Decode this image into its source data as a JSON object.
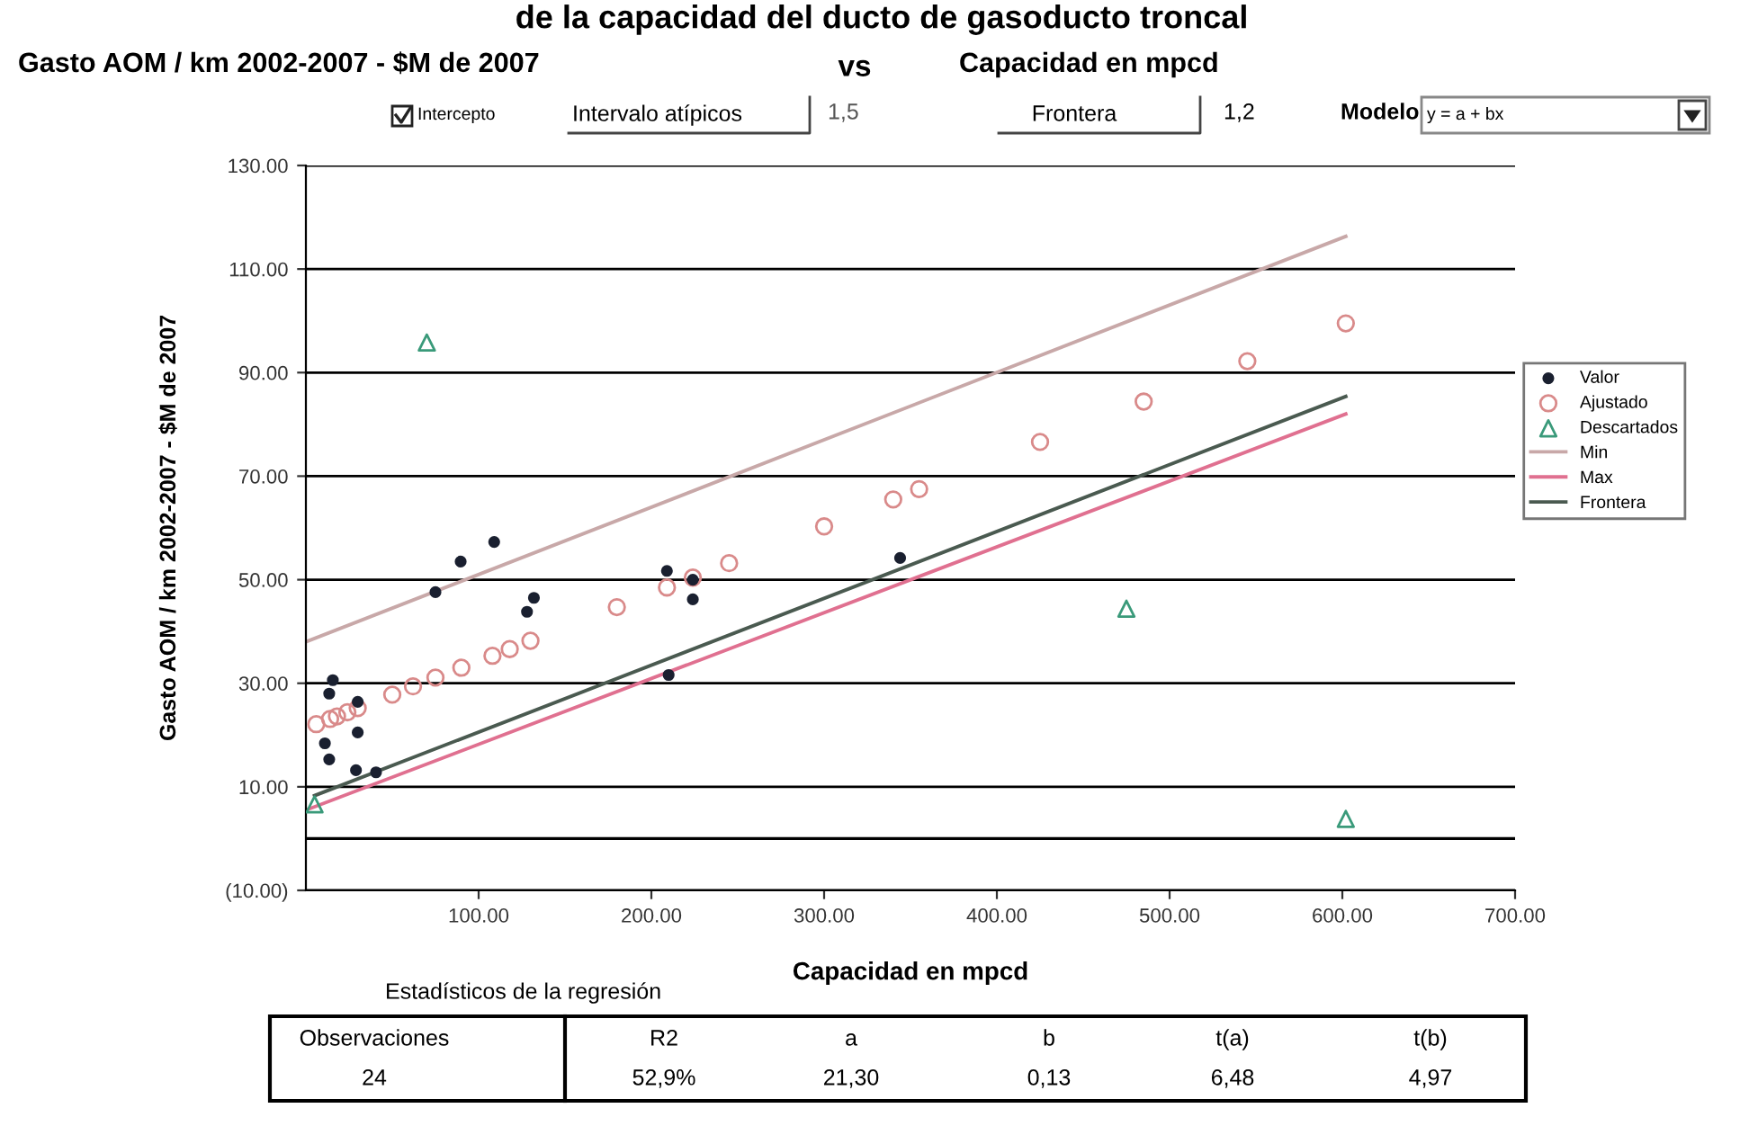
{
  "chart_data": {
    "type": "scatter",
    "title": "de la capacidad del ducto de gasoducto troncal",
    "xlabel": "Capacidad en mpcd",
    "ylabel": "Gasto AOM / km 2002-2007 - $M de 2007",
    "xlim": [
      0,
      700
    ],
    "xticks": [
      {
        "value": 100,
        "label": "100.00"
      },
      {
        "value": 200,
        "label": "200.00"
      },
      {
        "value": 300,
        "label": "300.00"
      },
      {
        "value": 400,
        "label": "400.00"
      },
      {
        "value": 500,
        "label": "500.00"
      },
      {
        "value": 600,
        "label": "600.00"
      },
      {
        "value": 700,
        "label": "700.00"
      }
    ],
    "ylim": [
      -10,
      130
    ],
    "yticks": [
      {
        "value": -10,
        "label": "(10.00)"
      },
      {
        "value": 10,
        "label": "10.00"
      },
      {
        "value": 30,
        "label": "30.00"
      },
      {
        "value": 50,
        "label": "50.00"
      },
      {
        "value": 70,
        "label": "70.00"
      },
      {
        "value": 90,
        "label": "90.00"
      },
      {
        "value": 110,
        "label": "110.00"
      },
      {
        "value": 130,
        "label": "130.00"
      }
    ],
    "grid": "y",
    "legend": "right",
    "ref_lines": [
      {
        "axis": "y",
        "value": 0,
        "color": "#000000"
      }
    ],
    "series": [
      {
        "name": "Valor",
        "marker": "circle",
        "color": "#1a2030",
        "x": [
          11,
          13.5,
          13.5,
          15.6,
          29,
          30,
          30,
          40.6,
          75,
          89.6,
          109,
          128,
          132,
          209,
          210,
          224,
          224,
          344
        ],
        "values": [
          18.4,
          15.3,
          28,
          30.6,
          13.2,
          20.5,
          26.4,
          12.8,
          47.6,
          53.5,
          57.3,
          43.8,
          46.5,
          51.7,
          31.6,
          46.2,
          50,
          54.2
        ]
      },
      {
        "name": "Ajustado",
        "marker": "circle",
        "color": "#d98a8a",
        "x": [
          6,
          14,
          18,
          24,
          30,
          50,
          62,
          75,
          90,
          108,
          118,
          130,
          180,
          209,
          224,
          245,
          300,
          340,
          355,
          425,
          485,
          545,
          602
        ],
        "values": [
          22.1,
          23.1,
          23.6,
          24.4,
          25.2,
          27.8,
          29.4,
          31.1,
          33,
          35.3,
          36.6,
          38.2,
          44.7,
          48.5,
          50.4,
          53.2,
          60.3,
          65.5,
          67.5,
          76.6,
          84.4,
          92.2,
          99.5
        ]
      },
      {
        "name": "Descartados",
        "marker": "triangle",
        "color": "#3a9a7a",
        "x": [
          5,
          70,
          475,
          602
        ],
        "values": [
          6.6,
          95.8,
          44.4,
          3.8
        ]
      },
      {
        "name": "Min",
        "type": "line",
        "color": "#c8a8a8",
        "x": [
          0,
          602
        ],
        "values": [
          38,
          116.3
        ]
      },
      {
        "name": "Max",
        "type": "line",
        "color": "#e07090",
        "x": [
          0,
          602
        ],
        "values": [
          5.5,
          82
        ]
      },
      {
        "name": "Frontera",
        "type": "line",
        "color": "#4a5a50",
        "x": [
          5,
          602
        ],
        "values": [
          8.3,
          85.4
        ]
      }
    ],
    "annotations": [
      "Gasto AOM / km 2002-2007 - $M de 2007",
      "vs",
      "Capacidad en mpcd",
      "Intercepto",
      "Intervalo atípicos",
      "1,5",
      "Frontera",
      "1,2",
      "Modelo",
      "y = a + bx",
      "Estadísticos de la regresión",
      "Observaciones",
      "R2",
      "a",
      "b",
      "t(a)",
      "t(b)",
      "24",
      "52,9%",
      "21,30",
      "0,13",
      "6,48",
      "4,97"
    ]
  }
}
